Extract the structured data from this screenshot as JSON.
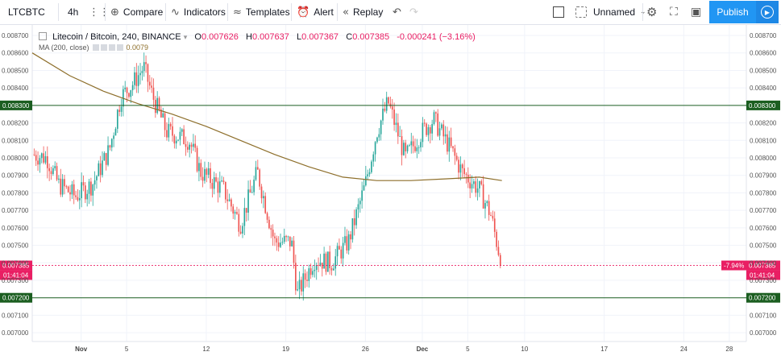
{
  "toolbar": {
    "symbol": "LTCBTC",
    "interval": "4h",
    "compare": "Compare",
    "indicators": "Indicators",
    "templates": "Templates",
    "alert": "Alert",
    "replay": "Replay",
    "layout_name": "Unnamed",
    "publish": "Publish"
  },
  "legend": {
    "title": "Litecoin / Bitcoin, 240, BINANCE",
    "o_label": "O",
    "o": "0.007626",
    "h_label": "H",
    "h": "0.007637",
    "l_label": "L",
    "l": "0.007367",
    "c_label": "C",
    "c": "0.007385",
    "change": "-0.000241 (−3.16%)",
    "ma_label": "MA (200, close)",
    "ma_value": "0.0079"
  },
  "colors": {
    "up": "#26a69a",
    "down": "#ef5350",
    "ma": "#8d6e2a",
    "level": "#1b5e20",
    "price": "#e91e63"
  },
  "chart_data": {
    "type": "candlestick",
    "ylim": [
      0.00695,
      0.00876
    ],
    "y_ticks": [
      "0.007000",
      "0.007100",
      "0.007300",
      "0.007400",
      "0.007500",
      "0.007600",
      "0.007700",
      "0.007800",
      "0.007900",
      "0.008000",
      "0.008100",
      "0.008200",
      "0.008400",
      "0.008500",
      "0.008600",
      "0.008700"
    ],
    "x_ticks": [
      {
        "label": "Nov",
        "d": 1
      },
      {
        "label": "5",
        "d": 5
      },
      {
        "label": "12",
        "d": 12
      },
      {
        "label": "19",
        "d": 19
      },
      {
        "label": "26",
        "d": 26
      },
      {
        "label": "Dec",
        "d": 31
      },
      {
        "label": "5",
        "d": 35
      },
      {
        "label": "10",
        "d": 40
      },
      {
        "label": "17",
        "d": 47
      },
      {
        "label": "24",
        "d": 54
      },
      {
        "label": "28",
        "d": 58
      }
    ],
    "x_start_day": -3.3,
    "x_end_day": 59.5,
    "levels": [
      {
        "value": 0.0083,
        "label": "0.008300"
      },
      {
        "value": 0.0072,
        "label": "0.007200"
      }
    ],
    "last_price": {
      "value": 0.007385,
      "label": "0.007385",
      "pct": "-7.94%",
      "countdown": "01:41:04"
    },
    "ma_200": [
      [
        -3.3,
        0.0086
      ],
      [
        0,
        0.00847
      ],
      [
        3,
        0.00838
      ],
      [
        6,
        0.00831
      ],
      [
        9,
        0.00825
      ],
      [
        12,
        0.00818
      ],
      [
        15,
        0.0081
      ],
      [
        18,
        0.00802
      ],
      [
        21,
        0.00795
      ],
      [
        24,
        0.00789
      ],
      [
        27,
        0.00787
      ],
      [
        30,
        0.00787
      ],
      [
        33,
        0.00788
      ],
      [
        36,
        0.00789
      ],
      [
        38,
        0.00787
      ]
    ],
    "price_path": [
      [
        -3.3,
        0.00802
      ],
      [
        -2.0,
        0.008
      ],
      [
        -1.0,
        0.00785
      ],
      [
        0.5,
        0.00778
      ],
      [
        2.0,
        0.00785
      ],
      [
        3.5,
        0.00805
      ],
      [
        4.5,
        0.00835
      ],
      [
        5.5,
        0.00842
      ],
      [
        6.5,
        0.00852
      ],
      [
        7.3,
        0.00835
      ],
      [
        8.5,
        0.00815
      ],
      [
        10.5,
        0.0081
      ],
      [
        11.5,
        0.00792
      ],
      [
        13.5,
        0.00782
      ],
      [
        15.0,
        0.00762
      ],
      [
        16.5,
        0.00792
      ],
      [
        18.0,
        0.00752
      ],
      [
        19.5,
        0.00752
      ],
      [
        20.0,
        0.00722
      ],
      [
        21.5,
        0.00742
      ],
      [
        23.0,
        0.0074
      ],
      [
        24.5,
        0.00752
      ],
      [
        26.0,
        0.00785
      ],
      [
        27.0,
        0.00815
      ],
      [
        28.0,
        0.00832
      ],
      [
        29.5,
        0.008
      ],
      [
        31.0,
        0.00815
      ],
      [
        32.0,
        0.00822
      ],
      [
        33.5,
        0.00805
      ],
      [
        34.5,
        0.00792
      ],
      [
        36.0,
        0.00782
      ],
      [
        37.0,
        0.00768
      ],
      [
        38.0,
        0.007385
      ]
    ],
    "candles_per_day": 6
  }
}
